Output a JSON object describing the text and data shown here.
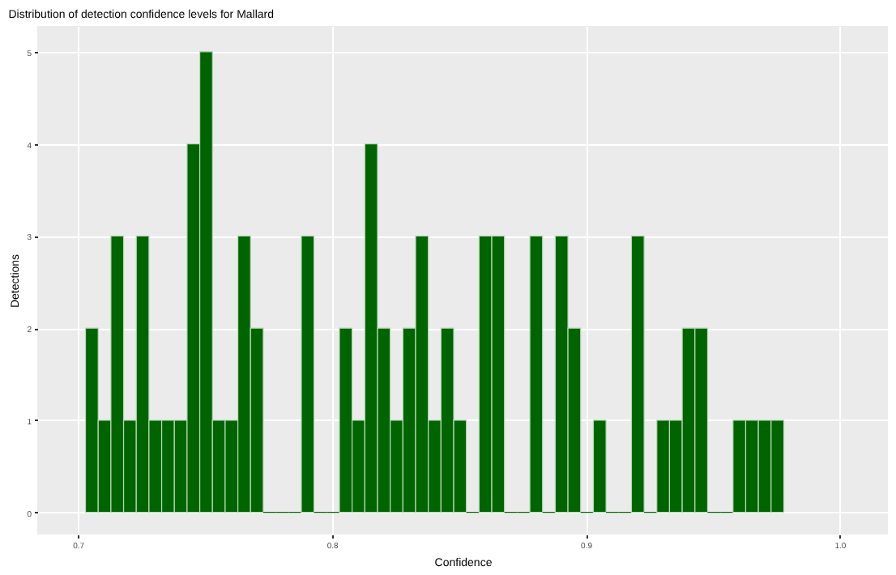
{
  "chart_data": {
    "type": "histogram",
    "title": "Distribution of detection confidence levels for Mallard",
    "xlabel": "Confidence",
    "ylabel": "Detections",
    "bins": [
      0.703,
      0.708,
      0.713,
      0.718,
      0.723,
      0.728,
      0.733,
      0.738,
      0.743,
      0.748,
      0.753,
      0.758,
      0.763,
      0.768,
      0.773,
      0.778,
      0.783,
      0.788,
      0.793,
      0.798,
      0.803,
      0.808,
      0.813,
      0.818,
      0.823,
      0.828,
      0.833,
      0.838,
      0.843,
      0.848,
      0.853,
      0.858,
      0.863,
      0.868,
      0.873,
      0.878,
      0.883,
      0.888,
      0.893,
      0.898,
      0.903,
      0.908,
      0.913,
      0.918,
      0.923,
      0.928,
      0.933,
      0.938,
      0.943,
      0.948,
      0.953,
      0.958,
      0.963,
      0.968,
      0.973,
      0.978
    ],
    "values": [
      2,
      1,
      3,
      1,
      3,
      1,
      1,
      1,
      4,
      5,
      1,
      1,
      3,
      2,
      0,
      0,
      0,
      3,
      0,
      0,
      2,
      1,
      4,
      2,
      1,
      2,
      3,
      1,
      2,
      1,
      0,
      3,
      3,
      0,
      0,
      3,
      0,
      3,
      2,
      0,
      1,
      0,
      0,
      3,
      0,
      1,
      1,
      2,
      2,
      0,
      0,
      1,
      1,
      1,
      1
    ],
    "color": "#006400",
    "xlim": [
      0.684,
      1.019
    ],
    "xticks": [
      0.7,
      0.8,
      0.9,
      {
        "value": 1,
        "label": "1.0"
      }
    ],
    "ylim": [
      -0.24,
      5.28
    ],
    "yticks": [
      0,
      1,
      2,
      3,
      4,
      5
    ],
    "grid": true
  }
}
